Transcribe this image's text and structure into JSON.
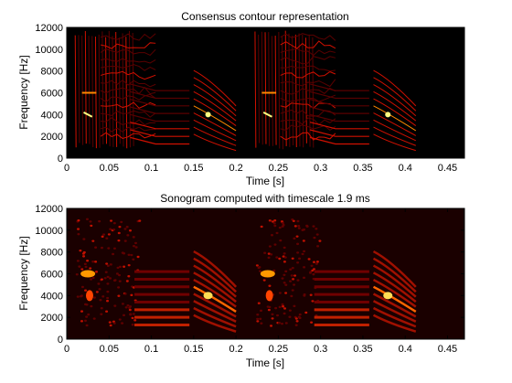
{
  "chart_data": [
    {
      "type": "heatmap",
      "title": "Consensus contour representation",
      "xlabel": "Time [s]",
      "ylabel": "Frequency [Hz]",
      "xlim": [
        0,
        0.47
      ],
      "ylim": [
        0,
        12000
      ],
      "x_ticks": [
        0,
        0.05,
        0.1,
        0.15,
        0.2,
        0.25,
        0.3,
        0.35,
        0.4,
        0.45
      ],
      "x_tick_labels": [
        "0",
        "0.05",
        "0.1",
        "0.15",
        "0.2",
        "0.25",
        "0.3",
        "0.35",
        "0.4",
        "0.45"
      ],
      "y_ticks": [
        0,
        2000,
        4000,
        6000,
        8000,
        10000,
        12000
      ],
      "y_tick_labels": [
        "0",
        "2000",
        "4000",
        "6000",
        "8000",
        "10000",
        "12000"
      ],
      "colormap": "hot",
      "background": "#000000",
      "style": "contours"
    },
    {
      "type": "heatmap",
      "title": "Sonogram computed with timescale    1.9 ms",
      "xlabel": "Time [s]",
      "ylabel": "Frequency [Hz]",
      "xlim": [
        0,
        0.47
      ],
      "ylim": [
        0,
        12000
      ],
      "x_ticks": [
        0,
        0.05,
        0.1,
        0.15,
        0.2,
        0.25,
        0.3,
        0.35,
        0.4,
        0.45
      ],
      "x_tick_labels": [
        "0",
        "0.05",
        "0.1",
        "0.15",
        "0.2",
        "0.25",
        "0.3",
        "0.35",
        "0.4",
        "0.45"
      ],
      "y_ticks": [
        0,
        2000,
        4000,
        6000,
        8000,
        10000,
        12000
      ],
      "y_tick_labels": [
        "0",
        "2000",
        "4000",
        "6000",
        "8000",
        "10000",
        "12000"
      ],
      "colormap": "hot",
      "background": "#1a0000",
      "style": "blobs"
    }
  ],
  "colors": {
    "background": "#ffffff",
    "text": "#000000",
    "contour_dark": "#5a0000",
    "contour_mid": "#d01000",
    "contour_bright": "#ff8800",
    "contour_hot": "#ffff80"
  }
}
